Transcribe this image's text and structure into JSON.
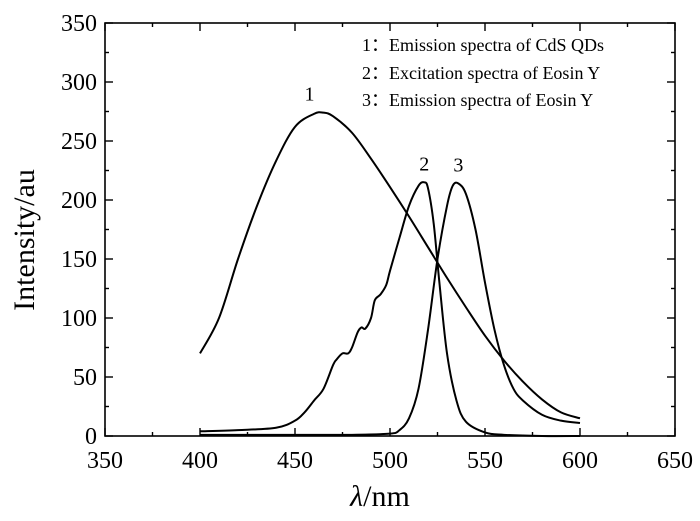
{
  "chart_data": {
    "type": "line",
    "xlabel_symbol": "λ",
    "xlabel_unit": "/nm",
    "ylabel": "Intensity/au",
    "xlim": [
      350,
      650
    ],
    "ylim": [
      0,
      350
    ],
    "x_ticks": [
      "350",
      "400",
      "450",
      "500",
      "550",
      "600",
      "650"
    ],
    "y_ticks": [
      "0",
      "50",
      "100",
      "150",
      "200",
      "250",
      "300",
      "350"
    ],
    "grid": false,
    "legend_position": "top-right",
    "legend": [
      "1：Emission spectra of CdS QDs",
      "2：Excitation spectra of Eosin Y",
      "3：Emission spectra of Eosin Y"
    ],
    "series": [
      {
        "label": "1",
        "x": [
          400,
          410,
          420,
          430,
          440,
          450,
          460,
          465,
          470,
          480,
          490,
          500,
          510,
          520,
          530,
          540,
          550,
          560,
          570,
          580,
          590,
          600
        ],
        "y": [
          70,
          100,
          150,
          195,
          233,
          262,
          273,
          274,
          271,
          257,
          235,
          211,
          186,
          160,
          134,
          109,
          85,
          64,
          46,
          31,
          20,
          15
        ]
      },
      {
        "label": "2",
        "x": [
          400,
          420,
          440,
          450,
          455,
          460,
          465,
          470,
          472,
          475,
          478,
          480,
          483,
          485,
          487,
          490,
          492,
          495,
          498,
          500,
          505,
          510,
          515,
          518,
          520,
          523,
          526,
          530,
          535,
          540,
          550,
          560,
          580,
          600
        ],
        "y": [
          4,
          5,
          7,
          13,
          20,
          30,
          40,
          60,
          65,
          70,
          70,
          75,
          88,
          92,
          91,
          100,
          115,
          120,
          128,
          140,
          168,
          195,
          212,
          215,
          210,
          180,
          130,
          70,
          30,
          12,
          3,
          1,
          0,
          0
        ]
      },
      {
        "label": "3",
        "x": [
          400,
          450,
          480,
          500,
          505,
          510,
          515,
          520,
          525,
          530,
          533,
          536,
          540,
          545,
          550,
          555,
          560,
          565,
          570,
          580,
          590,
          600
        ],
        "y": [
          1,
          1,
          1,
          2,
          5,
          15,
          40,
          90,
          150,
          195,
          212,
          214,
          205,
          175,
          130,
          90,
          60,
          40,
          30,
          18,
          13,
          11
        ]
      }
    ]
  }
}
